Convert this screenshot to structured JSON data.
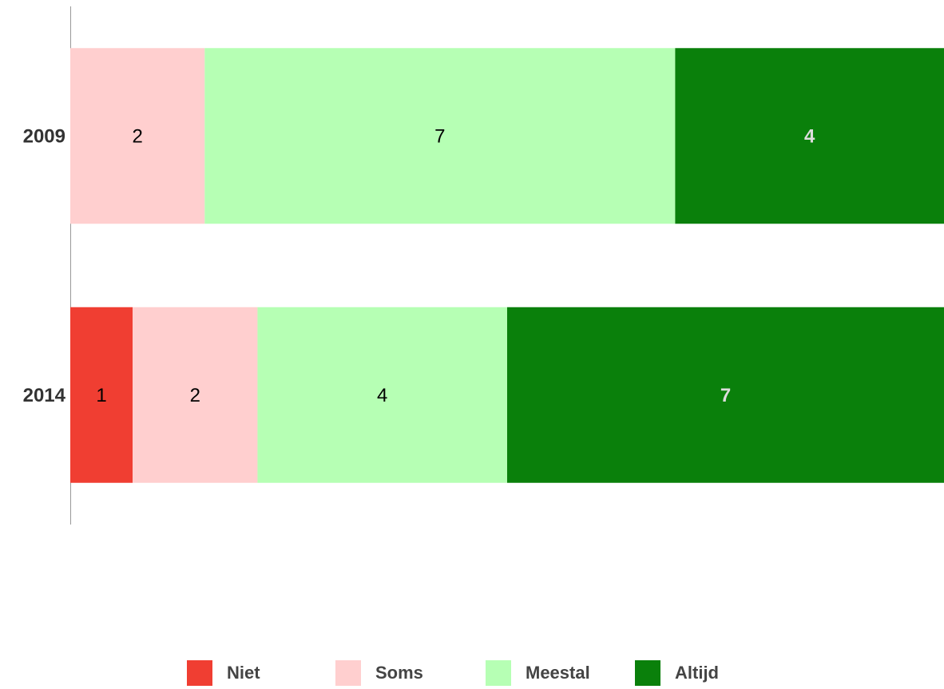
{
  "chart_data": {
    "type": "bar",
    "orientation": "horizontal",
    "stacked": true,
    "normalized": true,
    "categories": [
      "2009",
      "2014"
    ],
    "series": [
      {
        "name": "Niet",
        "color": "#f03e32",
        "label_color": "#000000",
        "values": [
          null,
          1
        ]
      },
      {
        "name": "Soms",
        "color": "#ffcfcf",
        "label_color": "#000000",
        "values": [
          2,
          2
        ]
      },
      {
        "name": "Meestal",
        "color": "#b6ffb4",
        "label_color": "#000000",
        "values": [
          7,
          4
        ]
      },
      {
        "name": "Altijd",
        "color": "#0a800b",
        "label_color": "#dddddd",
        "values": [
          4,
          7
        ]
      }
    ],
    "legend": "bottom"
  }
}
